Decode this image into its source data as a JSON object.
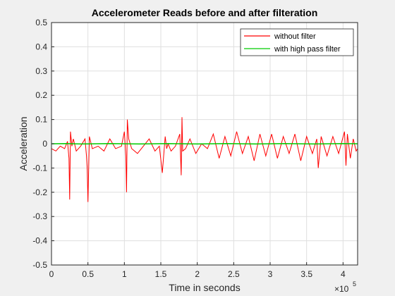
{
  "chart_data": {
    "type": "line",
    "title": "Accelerometer Reads before and after filteration",
    "xlabel": "Time in seconds",
    "ylabel": "Acceleration",
    "x_exponent_label": "×10",
    "x_exponent_power": "5",
    "xlim": [
      0,
      420000
    ],
    "ylim": [
      -0.5,
      0.5
    ],
    "xticks": [
      0,
      50000,
      100000,
      150000,
      200000,
      250000,
      300000,
      350000,
      400000
    ],
    "xtick_labels": [
      "0",
      "0.5",
      "1",
      "1.5",
      "2",
      "2.5",
      "3",
      "3.5",
      "4"
    ],
    "yticks": [
      -0.5,
      -0.4,
      -0.3,
      -0.2,
      -0.1,
      0,
      0.1,
      0.2,
      0.3,
      0.4,
      0.5
    ],
    "ytick_labels": [
      "-0.5",
      "-0.4",
      "-0.3",
      "-0.2",
      "-0.1",
      "0",
      "0.1",
      "0.2",
      "0.3",
      "0.4",
      "0.5"
    ],
    "grid": true,
    "legend_position": "top-right",
    "series": [
      {
        "name": "without filter",
        "color": "#ff0000",
        "x": [
          0,
          6000,
          12000,
          18000,
          22000,
          24000,
          25000,
          26000,
          28000,
          30000,
          34000,
          40000,
          46000,
          48000,
          49000,
          50000,
          52000,
          56000,
          64000,
          72000,
          80000,
          88000,
          96000,
          100000,
          102000,
          103000,
          104000,
          106000,
          110000,
          118000,
          126000,
          134000,
          142000,
          148000,
          152000,
          156000,
          158000,
          160000,
          164000,
          170000,
          176000,
          178000,
          179000,
          180000,
          184000,
          190000,
          198000,
          206000,
          214000,
          222000,
          230000,
          238000,
          246000,
          254000,
          262000,
          270000,
          278000,
          286000,
          294000,
          302000,
          310000,
          318000,
          326000,
          334000,
          342000,
          350000,
          358000,
          364000,
          366000,
          370000,
          378000,
          386000,
          394000,
          402000,
          404000,
          406000,
          410000,
          414000,
          418000,
          420000
        ],
        "y": [
          -0.02,
          -0.03,
          -0.01,
          -0.02,
          0.01,
          -0.06,
          -0.23,
          0.05,
          -0.01,
          0.02,
          -0.03,
          -0.01,
          0.02,
          -0.05,
          -0.1,
          -0.24,
          0.03,
          -0.02,
          -0.01,
          -0.03,
          0.02,
          -0.02,
          -0.01,
          0.05,
          -0.05,
          -0.2,
          0.1,
          0.02,
          -0.02,
          -0.04,
          -0.01,
          0.02,
          -0.03,
          -0.01,
          -0.12,
          0.03,
          -0.02,
          0.0,
          -0.03,
          -0.01,
          0.04,
          -0.13,
          0.11,
          -0.03,
          -0.02,
          0.02,
          -0.04,
          0.0,
          -0.02,
          0.04,
          -0.06,
          0.03,
          -0.05,
          0.05,
          -0.04,
          0.03,
          -0.07,
          0.04,
          -0.05,
          0.04,
          -0.06,
          0.03,
          -0.04,
          0.04,
          -0.07,
          0.03,
          -0.04,
          0.02,
          -0.1,
          0.03,
          -0.05,
          0.03,
          -0.04,
          0.05,
          -0.09,
          0.04,
          -0.06,
          0.02,
          -0.03,
          -0.02
        ]
      },
      {
        "name": "with high pass filter",
        "color": "#00cc00",
        "x": [
          0,
          20000,
          40000,
          60000,
          80000,
          100000,
          120000,
          140000,
          160000,
          180000,
          200000,
          220000,
          240000,
          260000,
          280000,
          300000,
          320000,
          340000,
          360000,
          380000,
          400000,
          420000
        ],
        "y": [
          0.0,
          0.001,
          -0.001,
          0.0,
          0.001,
          0.0,
          -0.001,
          0.0,
          0.001,
          0.0,
          -0.001,
          0.0,
          0.001,
          0.0,
          -0.001,
          0.0,
          0.001,
          0.0,
          -0.001,
          0.0,
          0.001,
          0.0
        ]
      }
    ]
  }
}
